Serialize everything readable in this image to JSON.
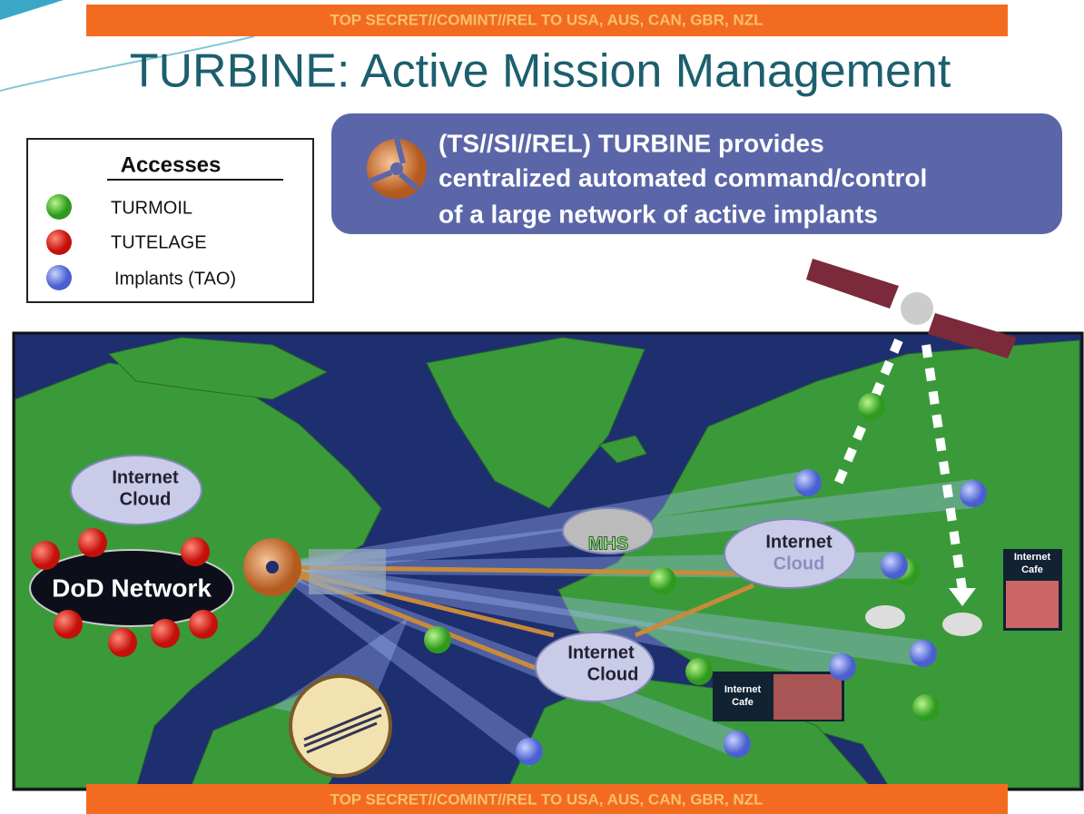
{
  "header": {
    "classification": "TOP SECRET//COMINT//REL TO USA, AUS, CAN, GBR, NZL",
    "title": "TURBINE: Active Mission Management"
  },
  "legend": {
    "title": "Accesses",
    "items": [
      {
        "label": "TURMOIL"
      },
      {
        "label": "TUTELAGE"
      },
      {
        "label": "Implants (TAO)"
      }
    ]
  },
  "callout": {
    "lines": [
      "(TS//SI//REL) TURBINE provides",
      "centralized automated command/control",
      "of a large network of active implants"
    ]
  },
  "map": {
    "clouds": [
      {
        "lines": [
          "Internet",
          "Cloud"
        ]
      },
      {
        "lines": [
          "Internet",
          "Cloud"
        ]
      },
      {
        "lines": [
          "Internet",
          "Cloud"
        ]
      }
    ],
    "dod_network": "DoD Network",
    "mhs": "MHS",
    "cafes": [
      {
        "lines": [
          "Internet",
          "Cafe"
        ]
      },
      {
        "lines": [
          "Internet",
          "Cafe"
        ]
      }
    ]
  },
  "footer": {
    "classification": "TOP SECRET//COMINT//REL TO USA, AUS, CAN, GBR, NZL"
  }
}
